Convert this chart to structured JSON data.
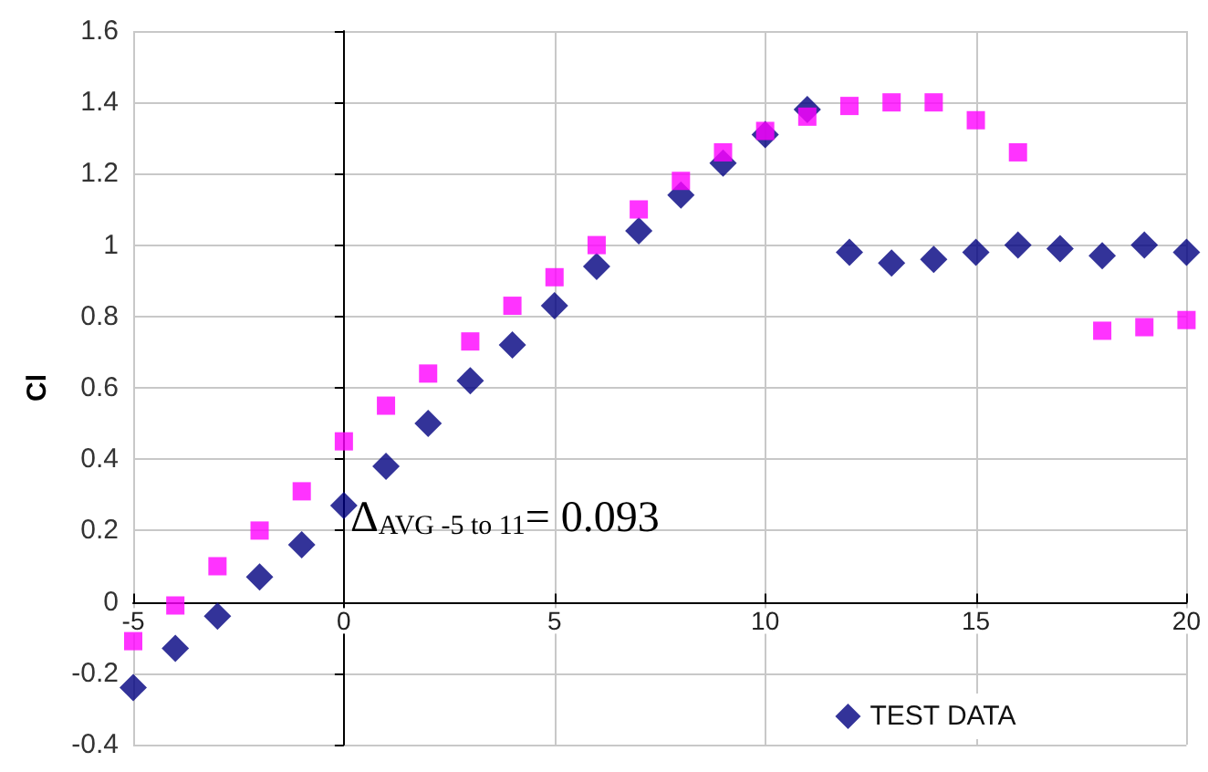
{
  "chart_data": {
    "type": "scatter",
    "ylabel": "Cl",
    "x": [
      -5,
      -4,
      -3,
      -2,
      -1,
      0,
      1,
      2,
      3,
      4,
      5,
      6,
      7,
      8,
      9,
      10,
      11,
      12,
      13,
      14,
      15,
      16,
      17,
      18,
      19,
      20
    ],
    "series": [
      {
        "name": "TEST DATA",
        "color": "#000080",
        "marker": "diamond",
        "values": [
          -0.24,
          -0.13,
          -0.04,
          0.07,
          0.16,
          0.27,
          0.38,
          0.5,
          0.62,
          0.72,
          0.83,
          0.94,
          1.04,
          1.14,
          1.23,
          1.31,
          1.38,
          0.98,
          0.95,
          0.96,
          0.98,
          1.0,
          0.99,
          0.97,
          1.0,
          0.98
        ]
      },
      {
        "color": "#ff00ff",
        "marker": "square",
        "values": [
          -0.11,
          -0.01,
          0.1,
          0.2,
          0.31,
          0.45,
          0.55,
          0.64,
          0.73,
          0.83,
          0.91,
          1.0,
          1.1,
          1.18,
          1.26,
          1.32,
          1.36,
          1.39,
          1.4,
          1.4,
          1.35,
          1.26,
          null,
          0.76,
          0.77,
          0.79
        ]
      }
    ],
    "xlim": [
      -5,
      20
    ],
    "xticks": [
      -5,
      0,
      5,
      10,
      15,
      20
    ],
    "ylim": [
      -0.4,
      1.6
    ],
    "yticks": [
      -0.4,
      -0.2,
      0,
      0.2,
      0.4,
      0.6,
      0.8,
      1,
      1.2,
      1.4,
      1.6
    ],
    "grid": true,
    "legend": "bottom right",
    "annotations": [
      "Δ$_{AVG -5 to 11}$= 0.093"
    ]
  }
}
